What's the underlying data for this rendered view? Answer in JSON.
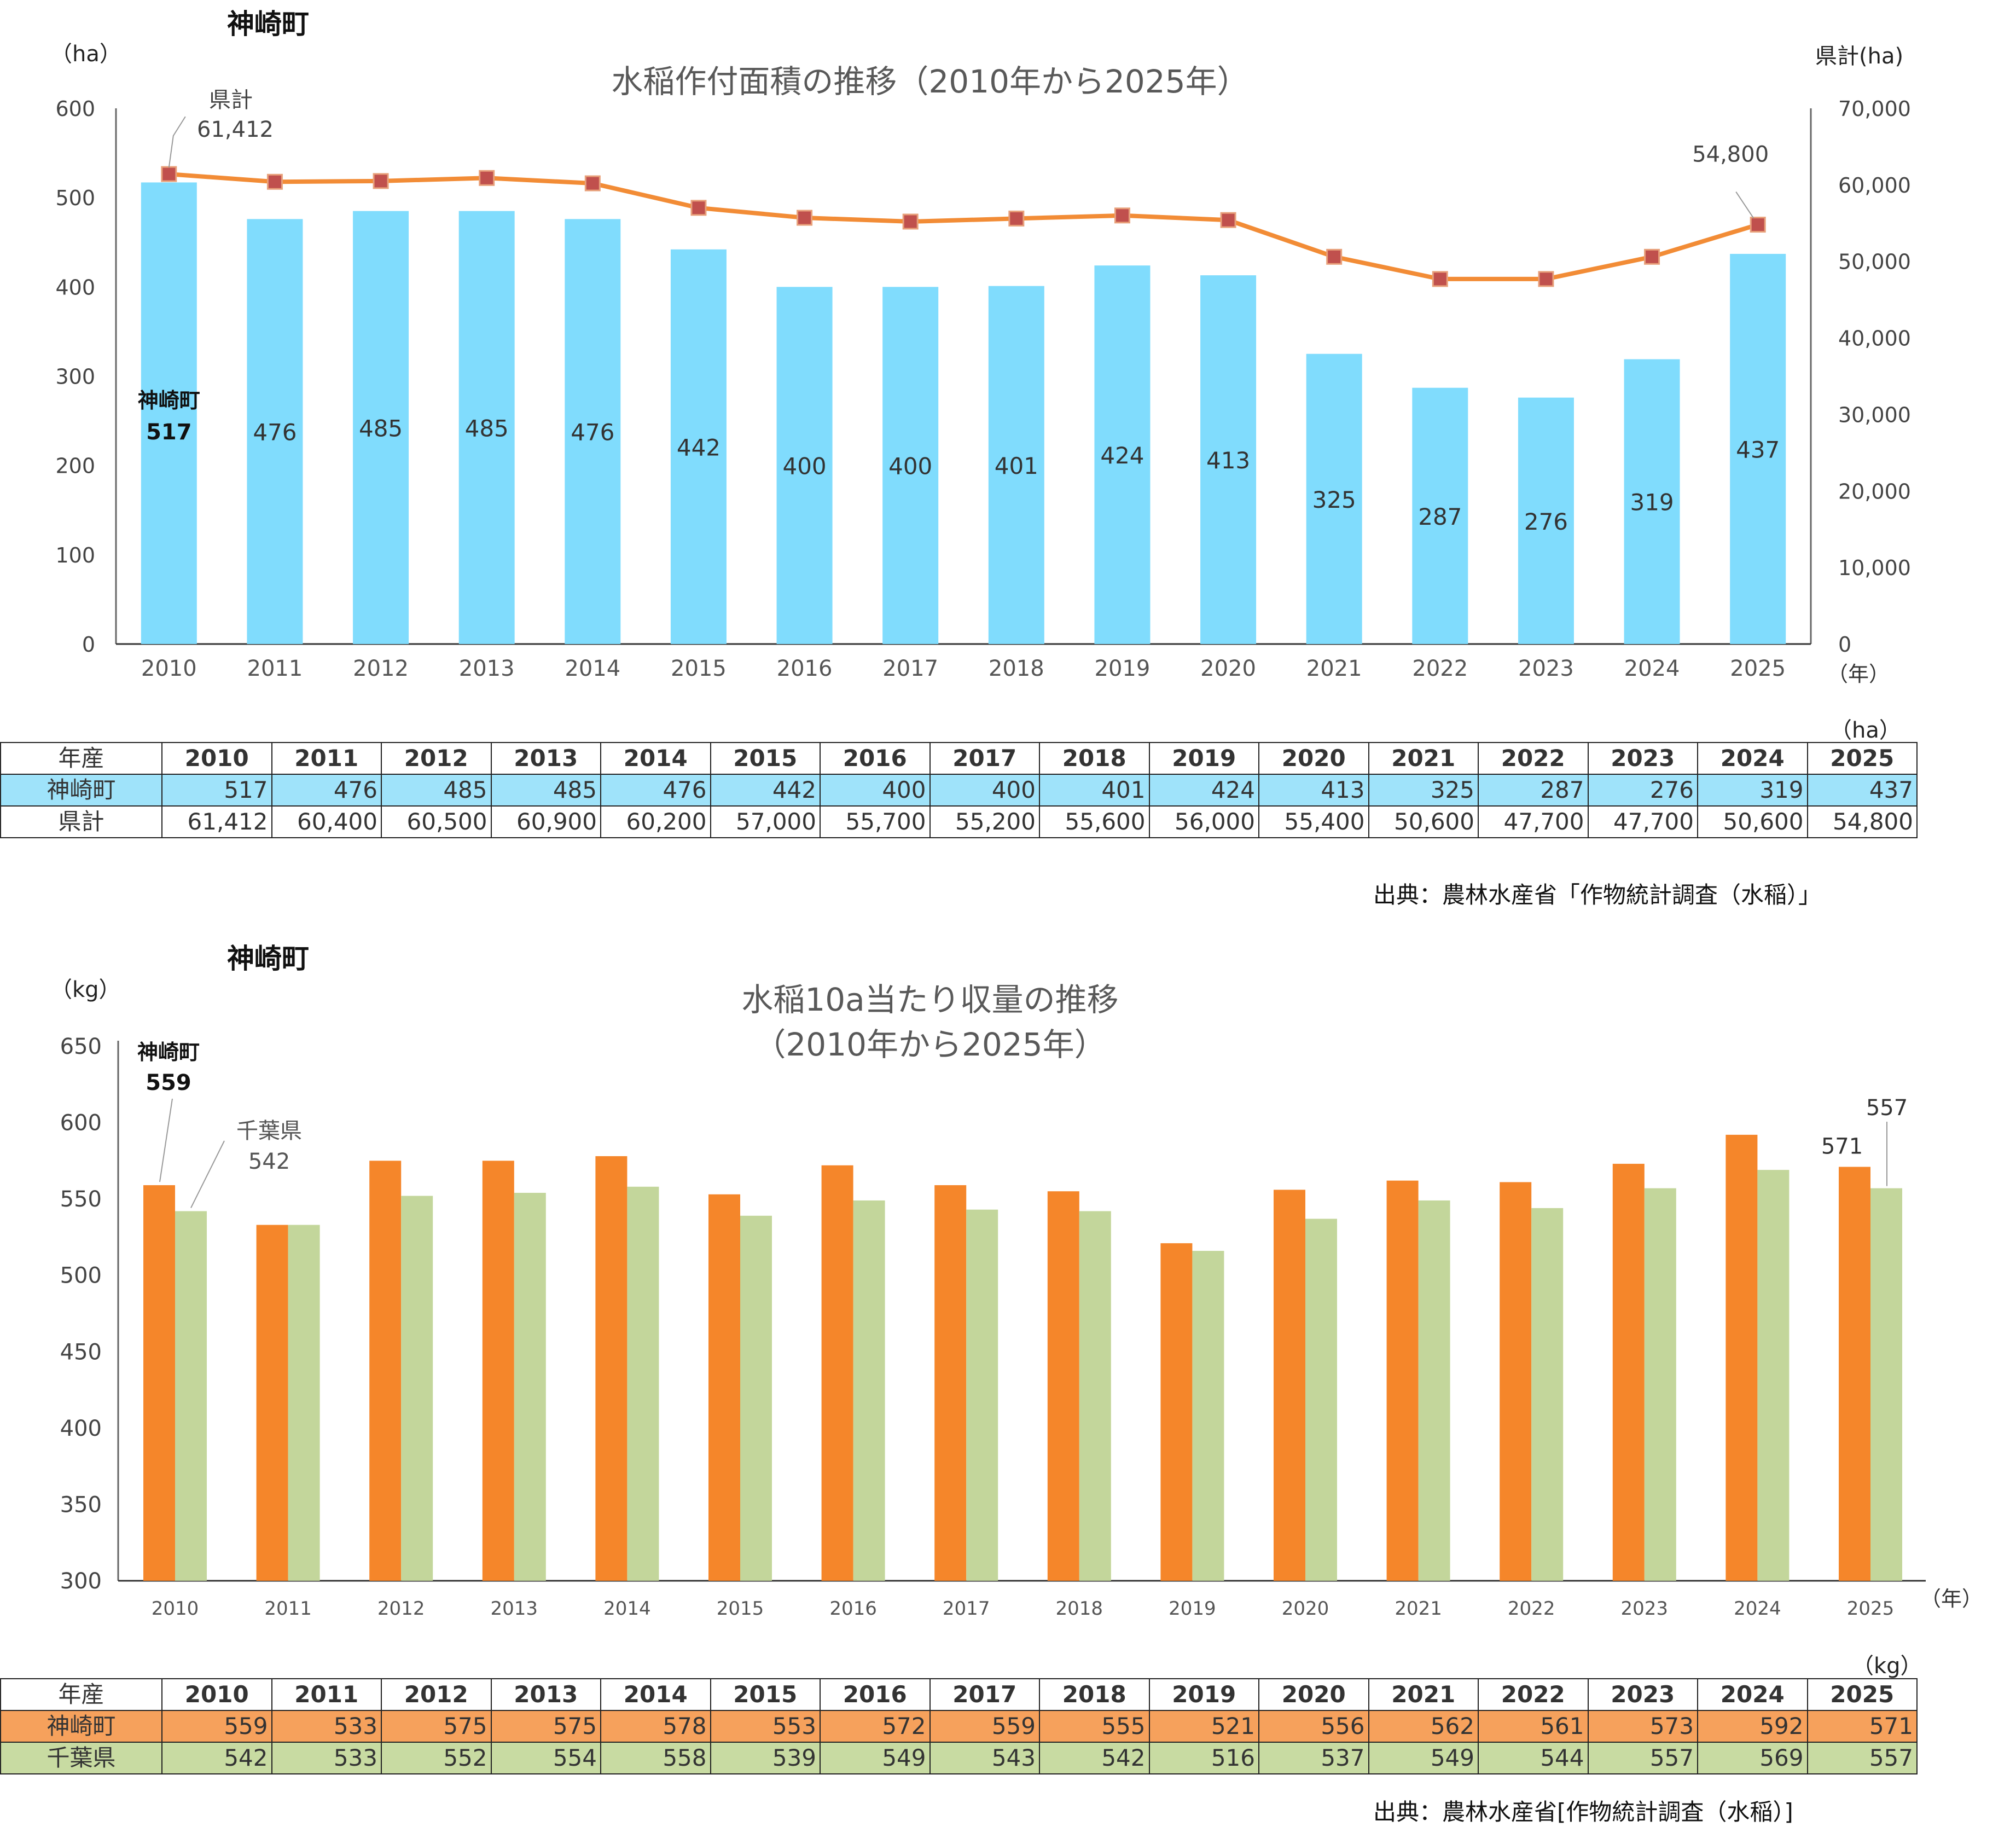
{
  "chart1": {
    "town_label": "神崎町",
    "title": "水稲作付面積の推移（2010年から2025年）",
    "left_unit": "（ha）",
    "right_unit": "県計(ha)",
    "x_unit": "（年）",
    "first_town_label": "神崎町",
    "pref_callout_label": "県計",
    "pref_first_value_label": "61,412",
    "pref_last_value_label": "54,800"
  },
  "chart2": {
    "town_label": "神崎町",
    "title_line1": "水稲10a当たり収量の推移",
    "title_line2": "（2010年から2025年）",
    "y_unit": "（kg）",
    "x_unit": "（年）",
    "town_callout_label": "神崎町",
    "pref_callout_label": "千葉県"
  },
  "table1": {
    "unit": "（ha）",
    "header_label": "年産",
    "row1_label": "神崎町",
    "row2_label": "県計",
    "row1": [
      "517",
      "476",
      "485",
      "485",
      "476",
      "442",
      "400",
      "400",
      "401",
      "424",
      "413",
      "325",
      "287",
      "276",
      "319",
      "437"
    ],
    "row2": [
      "61,412",
      "60,400",
      "60,500",
      "60,900",
      "60,200",
      "57,000",
      "55,700",
      "55,200",
      "55,600",
      "56,000",
      "55,400",
      "50,600",
      "47,700",
      "47,700",
      "50,600",
      "54,800"
    ]
  },
  "table2": {
    "unit": "（kg）",
    "header_label": "年産",
    "row1_label": "神崎町",
    "row2_label": "千葉県",
    "row1": [
      "559",
      "533",
      "575",
      "575",
      "578",
      "553",
      "572",
      "559",
      "555",
      "521",
      "556",
      "562",
      "561",
      "573",
      "592",
      "571"
    ],
    "row2": [
      "542",
      "533",
      "552",
      "554",
      "558",
      "539",
      "549",
      "543",
      "542",
      "516",
      "537",
      "549",
      "544",
      "557",
      "569",
      "557"
    ]
  },
  "source1": "出典：農林水産省「作物統計調査（水稲）」",
  "source2": "出典：農林水産省[作物統計調査（水稲）]",
  "chart_data": [
    {
      "type": "bar+line",
      "categories": [
        "2010",
        "2011",
        "2012",
        "2013",
        "2014",
        "2015",
        "2016",
        "2017",
        "2018",
        "2019",
        "2020",
        "2021",
        "2022",
        "2023",
        "2024",
        "2025"
      ],
      "series": [
        {
          "name": "神崎町",
          "axis": "left",
          "kind": "bar",
          "values": [
            517,
            476,
            485,
            485,
            476,
            442,
            400,
            400,
            401,
            424,
            413,
            325,
            287,
            276,
            319,
            437
          ]
        },
        {
          "name": "県計",
          "axis": "right",
          "kind": "line",
          "values": [
            61412,
            60400,
            60500,
            60900,
            60200,
            57000,
            55700,
            55200,
            55600,
            56000,
            55400,
            50600,
            47700,
            47700,
            50600,
            54800
          ]
        }
      ],
      "ylim_left": [
        0,
        600
      ],
      "yticks_left": [
        "0",
        "100",
        "200",
        "300",
        "400",
        "500",
        "600"
      ],
      "ylim_right": [
        0,
        70000
      ],
      "yticks_right": [
        "0",
        "10,000",
        "20,000",
        "30,000",
        "40,000",
        "50,000",
        "60,000",
        "70,000"
      ],
      "colors": {
        "bar": "#80dcfd",
        "line": "#f28c36",
        "marker": "#c0504d"
      },
      "grid": false
    },
    {
      "type": "bar",
      "categories": [
        "2010",
        "2011",
        "2012",
        "2013",
        "2014",
        "2015",
        "2016",
        "2017",
        "2018",
        "2019",
        "2020",
        "2021",
        "2022",
        "2023",
        "2024",
        "2025"
      ],
      "series": [
        {
          "name": "神崎町",
          "values": [
            559,
            533,
            575,
            575,
            578,
            553,
            572,
            559,
            555,
            521,
            556,
            562,
            561,
            573,
            592,
            571
          ]
        },
        {
          "name": "千葉県",
          "values": [
            542,
            533,
            552,
            554,
            558,
            539,
            549,
            543,
            542,
            516,
            537,
            549,
            544,
            557,
            569,
            557
          ]
        }
      ],
      "ylim": [
        300,
        650
      ],
      "yticks": [
        "300",
        "350",
        "400",
        "450",
        "500",
        "550",
        "600",
        "650"
      ],
      "colors": {
        "town": "#f5862a",
        "pref": "#c3d69b"
      },
      "grid": false
    }
  ]
}
